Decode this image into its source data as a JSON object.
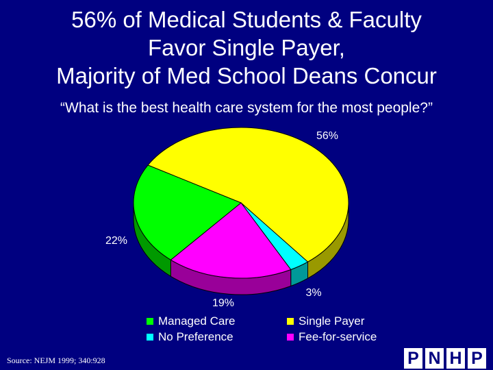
{
  "title": [
    "56% of Medical Students & Faculty",
    "Favor Single Payer,",
    "Majority of Med School Deans Concur"
  ],
  "subtitle": "“What is the best health care system for the most people?”",
  "chart_data": {
    "type": "pie",
    "style": "3d",
    "slices": [
      {
        "name": "Single Payer",
        "value": 56,
        "label": "56%",
        "color": "#ffff00",
        "side": "#999900"
      },
      {
        "name": "No Preference",
        "value": 3,
        "label": "3%",
        "color": "#00ffff",
        "side": "#009999"
      },
      {
        "name": "Fee-for-service",
        "value": 19,
        "label": "19%",
        "color": "#ff00ff",
        "side": "#990099"
      },
      {
        "name": "Managed Care",
        "value": 22,
        "label": "22%",
        "color": "#00ff00",
        "side": "#009900"
      }
    ],
    "legend": [
      {
        "name": "Managed Care",
        "color": "#00ff00"
      },
      {
        "name": "Single Payer",
        "color": "#ffff00"
      },
      {
        "name": "No Preference",
        "color": "#00ffff"
      },
      {
        "name": "Fee-for-service",
        "color": "#ff00ff"
      }
    ],
    "legend_position": "bottom"
  },
  "source": "Source: NEJM 1999; 340:928",
  "logo": [
    "P",
    "N",
    "H",
    "P"
  ]
}
